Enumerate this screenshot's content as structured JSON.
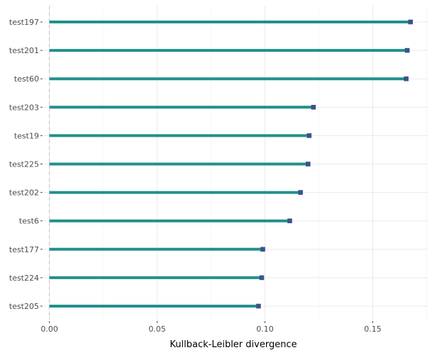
{
  "chart_data": {
    "type": "lollipop",
    "orientation": "horizontal",
    "title": "",
    "xlabel": "Kullback-Leibler divergence",
    "ylabel": "",
    "categories": [
      "test197",
      "test201",
      "test60",
      "test203",
      "test19",
      "test225",
      "test202",
      "test6",
      "test177",
      "test224",
      "test205"
    ],
    "values": [
      0.1675,
      0.166,
      0.1655,
      0.1225,
      0.1205,
      0.12,
      0.1165,
      0.1115,
      0.099,
      0.0985,
      0.097
    ],
    "xlim": [
      -0.0025,
      0.1755
    ],
    "xticks": [
      0.0,
      0.05,
      0.1,
      0.15
    ],
    "xtick_labels": [
      "0.00",
      "0.05",
      "0.10",
      "0.15"
    ],
    "reference_line_x": 0.0,
    "grid": true,
    "legend": "none",
    "colors": {
      "stem": "#21908C",
      "point": "#3B528B",
      "grid_major": "#EBEBEB",
      "grid_minor": "#F3F3F3",
      "reference_line": "#C9C9D9"
    }
  }
}
